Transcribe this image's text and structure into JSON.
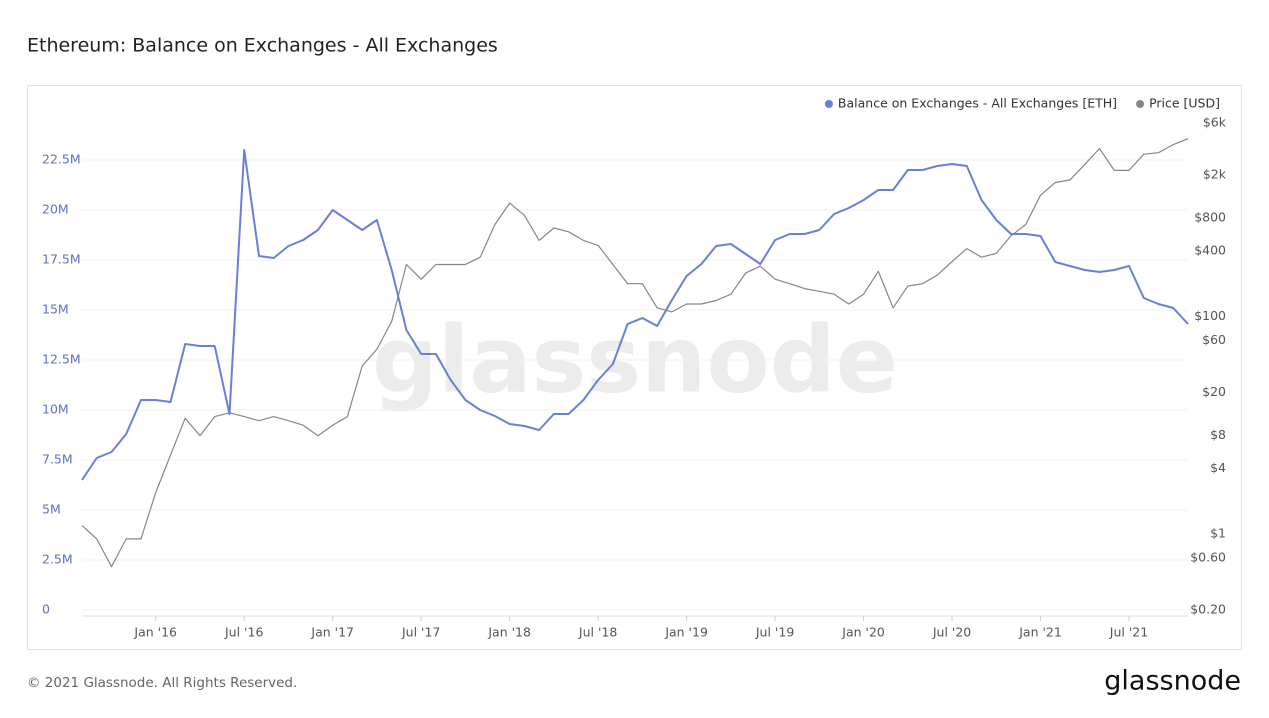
{
  "chart_data": {
    "type": "line",
    "title": "Ethereum: Balance on Exchanges - All Exchanges",
    "watermark": "glassnode",
    "footer": "© 2021 Glassnode. All Rights Reserved.",
    "brand": "glassnode",
    "legend": "top-right",
    "grid": true,
    "y2log": true,
    "x": [
      "2015-08",
      "2015-09",
      "2015-10",
      "2015-11",
      "2015-12",
      "2016-01",
      "2016-02",
      "2016-03",
      "2016-04",
      "2016-05",
      "2016-06",
      "2016-07",
      "2016-08",
      "2016-09",
      "2016-10",
      "2016-11",
      "2016-12",
      "2017-01",
      "2017-02",
      "2017-03",
      "2017-04",
      "2017-05",
      "2017-06",
      "2017-07",
      "2017-08",
      "2017-09",
      "2017-10",
      "2017-11",
      "2017-12",
      "2018-01",
      "2018-02",
      "2018-03",
      "2018-04",
      "2018-05",
      "2018-06",
      "2018-07",
      "2018-08",
      "2018-09",
      "2018-10",
      "2018-11",
      "2018-12",
      "2019-01",
      "2019-02",
      "2019-03",
      "2019-04",
      "2019-05",
      "2019-06",
      "2019-07",
      "2019-08",
      "2019-09",
      "2019-10",
      "2019-11",
      "2019-12",
      "2020-01",
      "2020-02",
      "2020-03",
      "2020-04",
      "2020-05",
      "2020-06",
      "2020-07",
      "2020-08",
      "2020-09",
      "2020-10",
      "2020-11",
      "2020-12",
      "2021-01",
      "2021-02",
      "2021-03",
      "2021-04",
      "2021-05",
      "2021-06",
      "2021-07",
      "2021-08",
      "2021-09",
      "2021-10",
      "2021-11"
    ],
    "xlim": [
      "2015-08",
      "2021-11"
    ],
    "xticks": [
      {
        "value": "2016-01",
        "label": "Jan '16"
      },
      {
        "value": "2016-07",
        "label": "Jul '16"
      },
      {
        "value": "2017-01",
        "label": "Jan '17"
      },
      {
        "value": "2017-07",
        "label": "Jul '17"
      },
      {
        "value": "2018-01",
        "label": "Jan '18"
      },
      {
        "value": "2018-07",
        "label": "Jul '18"
      },
      {
        "value": "2019-01",
        "label": "Jan '19"
      },
      {
        "value": "2019-07",
        "label": "Jul '19"
      },
      {
        "value": "2020-01",
        "label": "Jan '20"
      },
      {
        "value": "2020-07",
        "label": "Jul '20"
      },
      {
        "value": "2021-01",
        "label": "Jan '21"
      },
      {
        "value": "2021-07",
        "label": "Jul '21"
      }
    ],
    "ylim": [
      0,
      25000000
    ],
    "yticks": [
      0,
      {
        "value": 2500000,
        "label": "2.5M"
      },
      {
        "value": 5000000,
        "label": "5M"
      },
      {
        "value": 7500000,
        "label": "7.5M"
      },
      {
        "value": 10000000,
        "label": "10M"
      },
      {
        "value": 12500000,
        "label": "12.5M"
      },
      {
        "value": 15000000,
        "label": "15M"
      },
      {
        "value": 17500000,
        "label": "17.5M"
      },
      {
        "value": 20000000,
        "label": "20M"
      },
      {
        "value": 22500000,
        "label": "22.5M"
      }
    ],
    "y2lim": [
      0.2,
      7900
    ],
    "y2ticks": [
      {
        "value": 6000,
        "label": "$6k"
      },
      {
        "value": 2000,
        "label": "$2k"
      },
      {
        "value": 800,
        "label": "$800"
      },
      {
        "value": 400,
        "label": "$400"
      },
      {
        "value": 100,
        "label": "$100"
      },
      {
        "value": 60,
        "label": "$60"
      },
      {
        "value": 20,
        "label": "$20"
      },
      {
        "value": 8,
        "label": "$8"
      },
      {
        "value": 4,
        "label": "$4"
      },
      {
        "value": 1,
        "label": "$1"
      },
      {
        "value": 0.6,
        "label": "$0.60"
      },
      {
        "value": 0.2,
        "label": "$0.20"
      }
    ],
    "series": [
      {
        "name": "Balance on Exchanges - All Exchanges [ETH]",
        "color": "#6a7fd8",
        "values": [
          6500000,
          7600000,
          7900000,
          8800000,
          10500000,
          10500000,
          10400000,
          13300000,
          13200000,
          13200000,
          9800000,
          23000000,
          17700000,
          17600000,
          18200000,
          18500000,
          19000000,
          20000000,
          19500000,
          19000000,
          19500000,
          17000000,
          14000000,
          12800000,
          12800000,
          11500000,
          10500000,
          10000000,
          9700000,
          9300000,
          9200000,
          9000000,
          9800000,
          9800000,
          10500000,
          11500000,
          12300000,
          14300000,
          14600000,
          14200000,
          15500000,
          16700000,
          17300000,
          18200000,
          18300000,
          17800000,
          17300000,
          18500000,
          18800000,
          18800000,
          19000000,
          19800000,
          20100000,
          20500000,
          21000000,
          21000000,
          22000000,
          22000000,
          22200000,
          22300000,
          22200000,
          20500000,
          19500000,
          18800000,
          18800000,
          18700000,
          17400000,
          17200000,
          17000000,
          16900000,
          17000000,
          17200000,
          15600000,
          15300000,
          15100000,
          14300000
        ]
      },
      {
        "name": "Price [USD]",
        "color": "#868686",
        "axis": "y2",
        "values": [
          1.2,
          0.9,
          0.5,
          0.9,
          0.9,
          2.4,
          5.3,
          11.6,
          8,
          12,
          13,
          12,
          11,
          12,
          11,
          10,
          8,
          10,
          12,
          35,
          50,
          90,
          300,
          220,
          300,
          300,
          300,
          350,
          700,
          1100,
          850,
          500,
          650,
          600,
          500,
          450,
          300,
          200,
          200,
          120,
          110,
          130,
          130,
          140,
          160,
          250,
          290,
          220,
          200,
          180,
          170,
          160,
          130,
          160,
          260,
          120,
          190,
          200,
          240,
          320,
          420,
          350,
          380,
          550,
          700,
          1300,
          1700,
          1800,
          2500,
          3500,
          2200,
          2200,
          3100,
          3200,
          3800,
          4300
        ]
      }
    ]
  }
}
